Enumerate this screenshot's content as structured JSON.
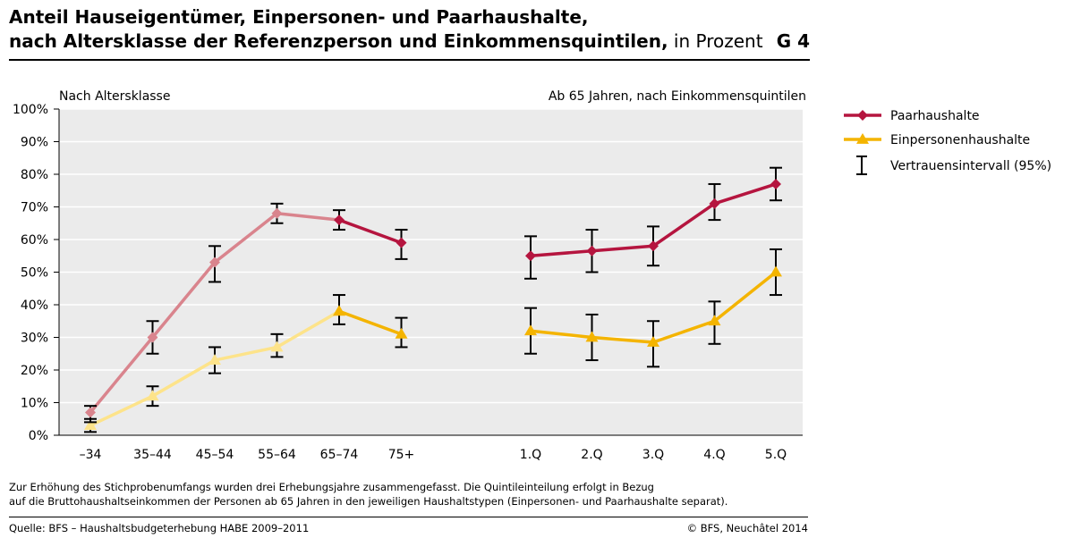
{
  "title": {
    "line1": "Anteil Hauseigentümer, Einpersonen- und Paarhaushalte,",
    "line2_bold": "nach Altersklasse der Referenzperson und Einkommensquintilen,",
    "line2_rest": " in Prozent",
    "chart_id": "G 4"
  },
  "chart_data": {
    "type": "line",
    "panel_labels": {
      "left": "Nach Altersklasse",
      "right": "Ab 65 Jahren, nach Einkommensquintilen"
    },
    "ylim": [
      0,
      100
    ],
    "y_ticks": [
      "0%",
      "10%",
      "20%",
      "30%",
      "40%",
      "50%",
      "60%",
      "70%",
      "80%",
      "90%",
      "100%"
    ],
    "grid": true,
    "legend_position": "right",
    "groups": [
      {
        "name": "Altersklasse",
        "categories": [
          "–34",
          "35–44",
          "45–54",
          "55–64",
          "65–74",
          "75+"
        ],
        "series": [
          {
            "name": "Paarhaushalte",
            "values": [
              7,
              30,
              53,
              68,
              66,
              59
            ],
            "ci_low": [
              4,
              25,
              47,
              65,
              63,
              54
            ],
            "ci_high": [
              9,
              35,
              58,
              71,
              69,
              63
            ]
          },
          {
            "name": "Einpersonenhaushalte",
            "values": [
              3,
              12,
              23,
              27,
              38,
              31
            ],
            "ci_low": [
              1,
              9,
              19,
              24,
              34,
              27
            ],
            "ci_high": [
              5,
              15,
              27,
              31,
              43,
              36
            ]
          }
        ]
      },
      {
        "name": "Einkommensquintile",
        "categories": [
          "1.Q",
          "2.Q",
          "3.Q",
          "4.Q",
          "5.Q"
        ],
        "series": [
          {
            "name": "Paarhaushalte",
            "values": [
              55,
              56.5,
              58,
              71,
              77
            ],
            "ci_low": [
              48,
              50,
              52,
              66,
              72
            ],
            "ci_high": [
              61,
              63,
              64,
              77,
              82
            ]
          },
          {
            "name": "Einpersonenhaushalte",
            "values": [
              32,
              30,
              28.5,
              35,
              50
            ],
            "ci_low": [
              25,
              23,
              21,
              28,
              43
            ],
            "ci_high": [
              39,
              37,
              35,
              41,
              57
            ]
          }
        ]
      }
    ],
    "legend": [
      {
        "name": "Paarhaushalte",
        "color": "#b5153f",
        "marker": "diamond"
      },
      {
        "name": "Einpersonenhaushalte",
        "color": "#f4b400",
        "marker": "triangle"
      },
      {
        "name": "Vertrauensintervall (95%)",
        "color": "#000000",
        "marker": "errorbar"
      }
    ],
    "colors": {
      "paar_age": "#d9848d",
      "ein_age": "#fde38a",
      "paar_q": "#b5153f",
      "ein_q": "#f4b400",
      "plot_bg": "#ebebeb"
    }
  },
  "footnote": {
    "line1": "Zur Erhöhung des Stichprobenumfangs wurden drei Erhebungsjahre zusammengefasst. Die Quintileinteilung erfolgt in Bezug",
    "line2": "auf die Bruttohaushaltseinkommen der Personen ab 65 Jahren in den jeweiligen Haushaltstypen (Einpersonen- und Paarhaushalte separat)."
  },
  "source": "Quelle: BFS – Haushaltsbudgeterhebung HABE 2009–2011",
  "copyright": "© BFS, Neuchâtel 2014"
}
